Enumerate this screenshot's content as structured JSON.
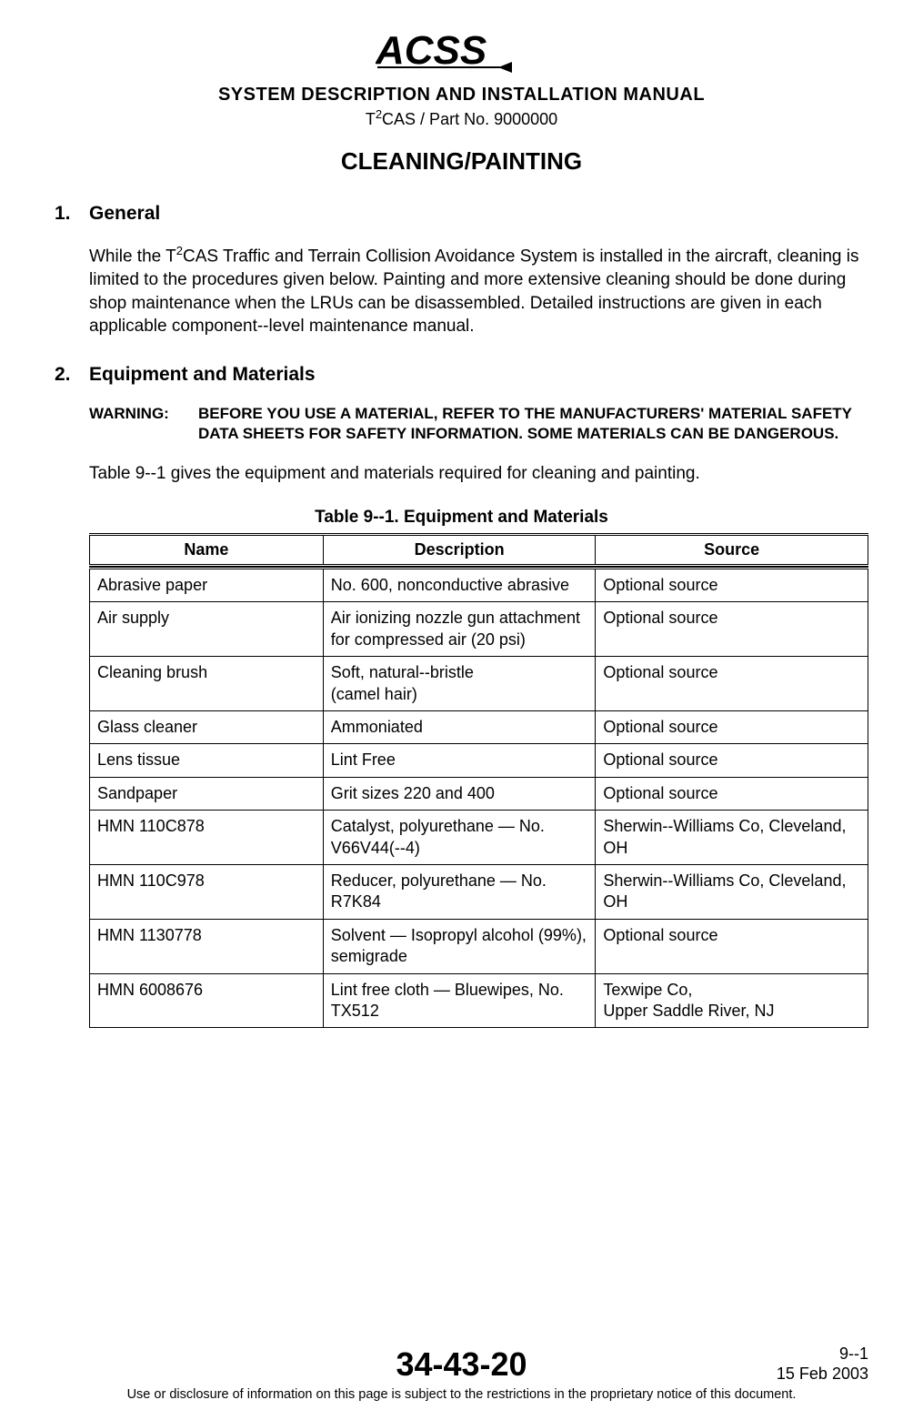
{
  "header": {
    "logo_text": "ACSS",
    "manual_title": "SYSTEM DESCRIPTION AND INSTALLATION MANUAL",
    "part_prefix": "T",
    "part_super": "2",
    "part_suffix": "CAS / Part No. 9000000"
  },
  "page_title": "CLEANING/PAINTING",
  "section1": {
    "num": "1.",
    "title": "General",
    "body_pre": "While the T",
    "body_super": "2",
    "body_post": "CAS Traffic and Terrain Collision Avoidance System is installed in the aircraft, cleaning is limited to the procedures given below.  Painting and more extensive cleaning should be done during shop maintenance when the LRUs can be disassembled.  Detailed instructions are given in each applicable component--level maintenance manual."
  },
  "section2": {
    "num": "2.",
    "title": "Equipment and Materials",
    "warning_label": "WARNING:",
    "warning_text": "BEFORE YOU USE A MATERIAL, REFER TO THE MANUFACTURERS' MATERIAL SAFETY DATA SHEETS FOR SAFETY INFORMATION. SOME MATERIALS CAN BE DANGEROUS.",
    "table_intro": "Table 9--1 gives the equipment and materials required for cleaning and painting.",
    "table_caption": "Table 9--1.  Equipment and Materials",
    "columns": [
      "Name",
      "Description",
      "Source"
    ],
    "rows": [
      [
        "Abrasive paper",
        "No. 600, nonconductive abrasive",
        "Optional source"
      ],
      [
        "Air supply",
        "Air ionizing nozzle gun attachment for compressed air (20 psi)",
        "Optional source"
      ],
      [
        "Cleaning brush",
        "Soft, natural--bristle\n(camel hair)",
        "Optional source"
      ],
      [
        "Glass cleaner",
        "Ammoniated",
        "Optional source"
      ],
      [
        "Lens tissue",
        "Lint Free",
        "Optional source"
      ],
      [
        "Sandpaper",
        "Grit sizes 220 and 400",
        "Optional source"
      ],
      [
        "HMN 110C878",
        "Catalyst, polyurethane — No. V66V44(--4)",
        "Sherwin--Williams Co, Cleveland, OH"
      ],
      [
        "HMN 110C978",
        "Reducer, polyurethane — No. R7K84",
        "Sherwin--Williams Co, Cleveland, OH"
      ],
      [
        "HMN 1130778",
        "Solvent — Isopropyl alcohol (99%), semigrade",
        "Optional source"
      ],
      [
        "HMN 6008676",
        "Lint free cloth — Bluewipes, No.\nTX512",
        "Texwipe Co,\nUpper Saddle River, NJ"
      ]
    ]
  },
  "footer": {
    "doc_number": "34-43-20",
    "page_num": "9--1",
    "date": "15 Feb 2003",
    "disclaimer": "Use or disclosure of information on this page is subject to the restrictions in the proprietary notice of this document."
  },
  "colors": {
    "text": "#000000",
    "background": "#ffffff",
    "border": "#000000"
  }
}
